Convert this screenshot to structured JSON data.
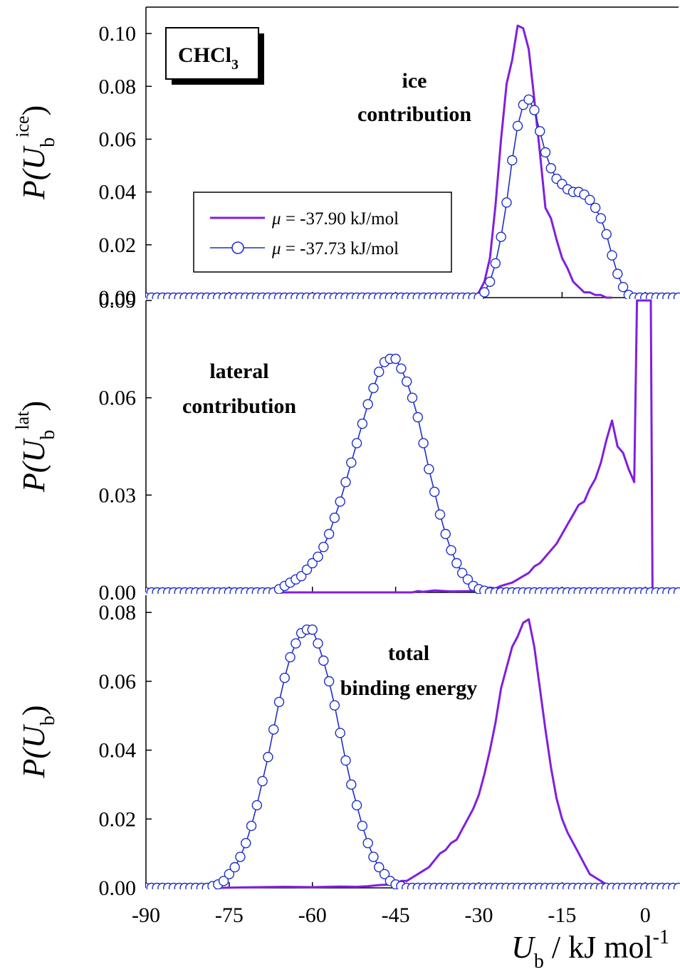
{
  "figure": {
    "x_axis_title": "U",
    "x_axis_title_sub": "b",
    "x_axis_title_unit": " / kJ mol",
    "x_axis_title_sup": "-1",
    "colors": {
      "purple": "#7f1fe0",
      "blue": "#1f2fc8"
    }
  },
  "chart_data": [
    {
      "type": "line",
      "panel": "top",
      "y_title_prefix": "P(U",
      "y_title_sub": "b",
      "y_title_sup": "ice",
      "y_title_suffix": ")",
      "xlim": [
        -90,
        6
      ],
      "ylim": [
        0,
        0.11
      ],
      "yticks": [
        "0.00",
        "0.02",
        "0.04",
        "0.06",
        "0.08",
        "0.10"
      ],
      "ytick_values": [
        0,
        0.02,
        0.04,
        0.06,
        0.08,
        0.1
      ],
      "annotation": [
        "ice",
        "contribution"
      ],
      "label_box": {
        "main": "CHCl",
        "sub": "3"
      },
      "legend": {
        "placement": "middle",
        "entries": [
          {
            "mu": "μ",
            "text": " = -37.90 kJ/mol"
          },
          {
            "mu": "μ",
            "text": " = -37.73 kJ/mol"
          }
        ]
      },
      "series": [
        {
          "name": "μ = -37.90 kJ/mol",
          "color": "#7f1fe0",
          "marker": "none",
          "x": [
            -90,
            -31,
            -30,
            -29,
            -28,
            -27,
            -26,
            -25,
            -24,
            -23,
            -22,
            -21,
            -20,
            -19,
            -18,
            -17,
            -16,
            -15,
            -14,
            -13,
            -12,
            -11,
            -10,
            -9,
            -8,
            -7,
            -6
          ],
          "y": [
            0,
            0,
            0.002,
            0.006,
            0.015,
            0.035,
            0.06,
            0.081,
            0.09,
            0.103,
            0.102,
            0.094,
            0.075,
            0.055,
            0.034,
            0.03,
            0.022,
            0.015,
            0.011,
            0.006,
            0.004,
            0.002,
            0.002,
            0.001,
            0.001,
            0,
            0
          ]
        },
        {
          "name": "μ = -37.73 kJ/mol",
          "color": "#1f2fc8",
          "marker": "circle",
          "x": [
            -90,
            -89,
            -88,
            -87,
            -86,
            -85,
            -84,
            -83,
            -82,
            -81,
            -80,
            -79,
            -78,
            -77,
            -76,
            -75,
            -74,
            -73,
            -72,
            -71,
            -70,
            -69,
            -68,
            -67,
            -66,
            -65,
            -64,
            -63,
            -62,
            -61,
            -60,
            -59,
            -58,
            -57,
            -56,
            -55,
            -54,
            -53,
            -52,
            -51,
            -50,
            -49,
            -48,
            -47,
            -46,
            -45,
            -44,
            -43,
            -42,
            -41,
            -40,
            -39,
            -38,
            -37,
            -36,
            -35,
            -34,
            -33,
            -32,
            -31,
            -30,
            -29,
            -28,
            -27,
            -26,
            -25,
            -24,
            -23,
            -22,
            -21,
            -20,
            -19,
            -18,
            -17,
            -16,
            -15,
            -14,
            -13,
            -12,
            -11,
            -10,
            -9,
            -8,
            -7,
            -6,
            -5,
            -4,
            -3,
            -2,
            -1,
            0,
            1,
            2,
            3,
            4,
            5,
            6
          ],
          "y": [
            0,
            0,
            0,
            0,
            0,
            0,
            0,
            0,
            0,
            0,
            0,
            0,
            0,
            0,
            0,
            0,
            0,
            0,
            0,
            0,
            0,
            0,
            0,
            0,
            0,
            0,
            0,
            0,
            0,
            0,
            0,
            0,
            0,
            0,
            0,
            0,
            0,
            0,
            0,
            0,
            0,
            0,
            0,
            0,
            0,
            0,
            0,
            0,
            0,
            0,
            0,
            0,
            0,
            0,
            0,
            0,
            0,
            0,
            0,
            0,
            0,
            0.002,
            0.006,
            0.013,
            0.023,
            0.036,
            0.052,
            0.065,
            0.073,
            0.075,
            0.071,
            0.063,
            0.055,
            0.049,
            0.045,
            0.043,
            0.041,
            0.04,
            0.04,
            0.039,
            0.037,
            0.034,
            0.03,
            0.024,
            0.016,
            0.009,
            0.004,
            0.001,
            0,
            0,
            0,
            0,
            0,
            0,
            0,
            0,
            0
          ]
        }
      ]
    },
    {
      "type": "line",
      "panel": "middle",
      "y_title_prefix": "P(U",
      "y_title_sub": "b",
      "y_title_sup": "lat",
      "y_title_suffix": ")",
      "xlim": [
        -90,
        6
      ],
      "ylim": [
        0,
        0.09
      ],
      "yticks": [
        "0.00",
        "0.03",
        "0.06",
        "0.09"
      ],
      "ytick_values": [
        0,
        0.03,
        0.06,
        0.09
      ],
      "annotation": [
        "lateral",
        "contribution"
      ],
      "series": [
        {
          "name": "μ = -37.90 kJ/mol",
          "color": "#7f1fe0",
          "marker": "none",
          "x": [
            -90,
            -42,
            -41,
            -40,
            -38,
            -35,
            -32,
            -30,
            -29,
            -28,
            -27,
            -26,
            -25,
            -24,
            -23,
            -22,
            -21,
            -20,
            -19,
            -18,
            -17,
            -16,
            -15,
            -14,
            -13,
            -12,
            -11,
            -10,
            -9,
            -8,
            -7,
            -6,
            -5,
            -4,
            -3,
            -2,
            -1.5,
            -1.2,
            -0.8,
            -0.5,
            0,
            0.5,
            1,
            1.3,
            6
          ],
          "y": [
            0,
            0,
            0.0004,
            0.0002,
            0.0006,
            0.0003,
            0.0004,
            0.0006,
            0.001,
            0.0015,
            0.0012,
            0.002,
            0.0025,
            0.003,
            0.004,
            0.005,
            0.006,
            0.008,
            0.009,
            0.011,
            0.013,
            0.015,
            0.018,
            0.021,
            0.024,
            0.027,
            0.028,
            0.032,
            0.035,
            0.04,
            0.047,
            0.053,
            0.045,
            0.043,
            0.038,
            0.034,
            0.09,
            0.09,
            0.09,
            0.09,
            0.09,
            0.09,
            0.09,
            0,
            0
          ]
        },
        {
          "name": "μ = -37.73 kJ/mol",
          "color": "#1f2fc8",
          "marker": "circle",
          "x": [
            -90,
            -89,
            -88,
            -87,
            -86,
            -85,
            -84,
            -83,
            -82,
            -81,
            -80,
            -79,
            -78,
            -77,
            -76,
            -75,
            -74,
            -73,
            -72,
            -71,
            -70,
            -69,
            -68,
            -67,
            -66,
            -65,
            -64,
            -63,
            -62,
            -61,
            -60,
            -59,
            -58,
            -57,
            -56,
            -55,
            -54,
            -53,
            -52,
            -51,
            -50,
            -49,
            -48,
            -47,
            -46,
            -45,
            -44,
            -43,
            -42,
            -41,
            -40,
            -39,
            -38,
            -37,
            -36,
            -35,
            -34,
            -33,
            -32,
            -31,
            -30,
            -29,
            -28,
            -27,
            -26,
            -25,
            -24,
            -23,
            -22,
            -21,
            -20,
            -19,
            -18,
            -17,
            -16,
            -15,
            -14,
            -13,
            -12,
            -11,
            -10,
            -9,
            -8,
            -7,
            -6,
            -5,
            -4,
            -3,
            -2,
            -1,
            0,
            1,
            2,
            3,
            4,
            5,
            6
          ],
          "y": [
            0,
            0,
            0,
            0,
            0,
            0,
            0,
            0,
            0,
            0,
            0,
            0,
            0,
            0,
            0,
            0,
            0,
            0,
            0,
            0,
            0,
            0,
            0,
            0,
            0.001,
            0.002,
            0.003,
            0.004,
            0.005,
            0.007,
            0.009,
            0.011,
            0.014,
            0.018,
            0.023,
            0.028,
            0.034,
            0.04,
            0.046,
            0.052,
            0.058,
            0.063,
            0.068,
            0.071,
            0.072,
            0.072,
            0.069,
            0.065,
            0.06,
            0.054,
            0.046,
            0.038,
            0.031,
            0.024,
            0.018,
            0.013,
            0.009,
            0.006,
            0.004,
            0.002,
            0.001,
            0.0005,
            0,
            0,
            0,
            0,
            0,
            0,
            0,
            0,
            0,
            0,
            0,
            0,
            0,
            0,
            0,
            0,
            0,
            0,
            0,
            0,
            0,
            0,
            0,
            0,
            0,
            0,
            0,
            0,
            0,
            0,
            0,
            0,
            0,
            0,
            0
          ]
        }
      ]
    },
    {
      "type": "line",
      "panel": "bottom",
      "y_title_prefix": "P(U",
      "y_title_sub": "b",
      "y_title_sup": "",
      "y_title_suffix": ")",
      "xlim": [
        -90,
        6
      ],
      "ylim": [
        0,
        0.085
      ],
      "yticks": [
        "0.00",
        "0.02",
        "0.04",
        "0.06",
        "0.08"
      ],
      "ytick_values": [
        0,
        0.02,
        0.04,
        0.06,
        0.08
      ],
      "xticks": [
        "-90",
        "-75",
        "-60",
        "-45",
        "-30",
        "-15",
        "0"
      ],
      "xtick_values": [
        -90,
        -75,
        -60,
        -45,
        -30,
        -15,
        0
      ],
      "annotation": [
        "total",
        "binding energy"
      ],
      "series": [
        {
          "name": "μ = -37.90 kJ/mol",
          "color": "#7f1fe0",
          "marker": "none",
          "x": [
            -90,
            -77,
            -70,
            -65,
            -60,
            -55,
            -52,
            -50,
            -48,
            -46,
            -45,
            -44,
            -43,
            -42,
            -41,
            -40,
            -39,
            -38,
            -37,
            -36,
            -35,
            -34,
            -33,
            -32,
            -31,
            -30,
            -29,
            -28,
            -27,
            -26,
            -25,
            -24,
            -23,
            -22,
            -21,
            -20,
            -19,
            -18,
            -17,
            -16,
            -15,
            -14,
            -13,
            -12,
            -11,
            -10,
            -9,
            -8,
            -7,
            -6
          ],
          "y": [
            0,
            0,
            0.0002,
            0.0003,
            0.0002,
            0.0004,
            0.0003,
            0.0005,
            0.0008,
            0.001,
            0.001,
            0.002,
            0.002,
            0.003,
            0.004,
            0.005,
            0.006,
            0.008,
            0.01,
            0.011,
            0.013,
            0.014,
            0.017,
            0.02,
            0.023,
            0.027,
            0.033,
            0.04,
            0.048,
            0.058,
            0.064,
            0.07,
            0.073,
            0.077,
            0.078,
            0.07,
            0.058,
            0.046,
            0.035,
            0.026,
            0.02,
            0.016,
            0.013,
            0.01,
            0.007,
            0.004,
            0.003,
            0.002,
            0.001,
            0
          ]
        },
        {
          "name": "μ = -37.73 kJ/mol",
          "color": "#1f2fc8",
          "marker": "circle",
          "x": [
            -90,
            -89,
            -88,
            -87,
            -86,
            -85,
            -84,
            -83,
            -82,
            -81,
            -80,
            -79,
            -78,
            -77,
            -76,
            -75,
            -74,
            -73,
            -72,
            -71,
            -70,
            -69,
            -68,
            -67,
            -66,
            -65,
            -64,
            -63,
            -62,
            -61,
            -60,
            -59,
            -58,
            -57,
            -56,
            -55,
            -54,
            -53,
            -52,
            -51,
            -50,
            -49,
            -48,
            -47,
            -46,
            -45,
            -44,
            -43,
            -42,
            -41,
            -40,
            -39,
            -38,
            -37,
            -36,
            -35,
            -34,
            -33,
            -32,
            -31,
            -30,
            -29,
            -28,
            -27,
            -26,
            -25,
            -24,
            -23,
            -22,
            -21,
            -20,
            -19,
            -18,
            -17,
            -16,
            -15,
            -14,
            -13,
            -12,
            -11,
            -10,
            -9,
            -8,
            -7,
            -6,
            -5,
            -4,
            -3,
            -2,
            -1,
            0,
            1,
            2,
            3,
            4,
            5,
            6
          ],
          "y": [
            0,
            0,
            0,
            0,
            0,
            0,
            0,
            0,
            0,
            0,
            0,
            0,
            0.0005,
            0.001,
            0.002,
            0.004,
            0.006,
            0.009,
            0.013,
            0.018,
            0.024,
            0.031,
            0.038,
            0.046,
            0.054,
            0.061,
            0.067,
            0.071,
            0.074,
            0.075,
            0.075,
            0.071,
            0.066,
            0.06,
            0.053,
            0.045,
            0.037,
            0.03,
            0.024,
            0.018,
            0.013,
            0.009,
            0.006,
            0.004,
            0.002,
            0.001,
            0.0005,
            0,
            0,
            0,
            0,
            0,
            0,
            0,
            0,
            0,
            0,
            0,
            0,
            0,
            0,
            0,
            0,
            0,
            0,
            0,
            0,
            0,
            0,
            0,
            0,
            0,
            0,
            0,
            0,
            0,
            0,
            0,
            0,
            0,
            0,
            0,
            0,
            0,
            0,
            0,
            0,
            0,
            0,
            0,
            0,
            0,
            0,
            0,
            0,
            0,
            0
          ]
        }
      ]
    }
  ]
}
